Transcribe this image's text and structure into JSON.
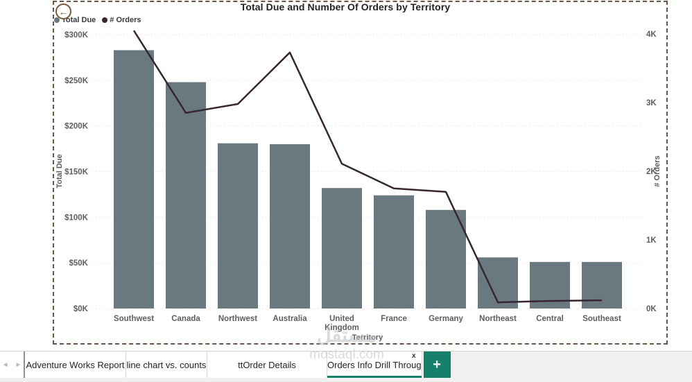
{
  "chart_data": {
    "type": "combo-bar-line",
    "title": "Total Due and Number Of Orders by Territory",
    "categories": [
      "Southwest",
      "Canada",
      "Northwest",
      "Australia",
      "United Kingdom",
      "France",
      "Germany",
      "Northeast",
      "Central",
      "Southeast"
    ],
    "series": [
      {
        "name": "Total Due",
        "type": "bar",
        "axis": "left",
        "color": "#6a7980",
        "values_k_usd": [
          283,
          248,
          181,
          180,
          132,
          124,
          108,
          56,
          51,
          51
        ]
      },
      {
        "name": "# Orders",
        "type": "line",
        "axis": "right",
        "color": "#372631",
        "values_k": [
          4.05,
          2.85,
          2.98,
          3.73,
          2.11,
          1.75,
          1.7,
          0.09,
          0.11,
          0.12
        ]
      }
    ],
    "left_axis": {
      "label": "Total Due",
      "ticks": [
        "$0K",
        "$50K",
        "$100K",
        "$150K",
        "$200K",
        "$250K",
        "$300K"
      ],
      "range_k": [
        0,
        300
      ]
    },
    "right_axis": {
      "label": "# Orders",
      "ticks": [
        "0K",
        "1K",
        "2K",
        "3K",
        "4K"
      ],
      "range_k": [
        0,
        4
      ]
    },
    "xlabel": "Territory",
    "grid": true,
    "legend_position": "top-left",
    "legend": [
      {
        "label": "Total Due",
        "color": "#6a7980"
      },
      {
        "label": "# Orders",
        "color": "#372631"
      }
    ]
  },
  "colors": {
    "bar": "#6a7980",
    "line": "#372631",
    "gridline": "#e8e8e6",
    "axis_text": "#605e5c",
    "frame_dash": "#6b5443",
    "accent_teal": "#17806b",
    "back_brown": "#7b5a3b"
  },
  "back_button": {
    "glyph": "←"
  },
  "tabbar": {
    "nav_prev": "◄",
    "nav_next": "►",
    "tabs": [
      {
        "label": "Adventure Works Report",
        "active": false
      },
      {
        "label": "line chart vs. counts",
        "active": false
      },
      {
        "label": "ttOrder Details",
        "active": false
      },
      {
        "label": "Orders Info Drill Throug",
        "active": true,
        "close_label": "x"
      }
    ],
    "add_label": "+"
  },
  "watermark": {
    "arabic": "مستقل",
    "domain": "mostaql.com"
  }
}
